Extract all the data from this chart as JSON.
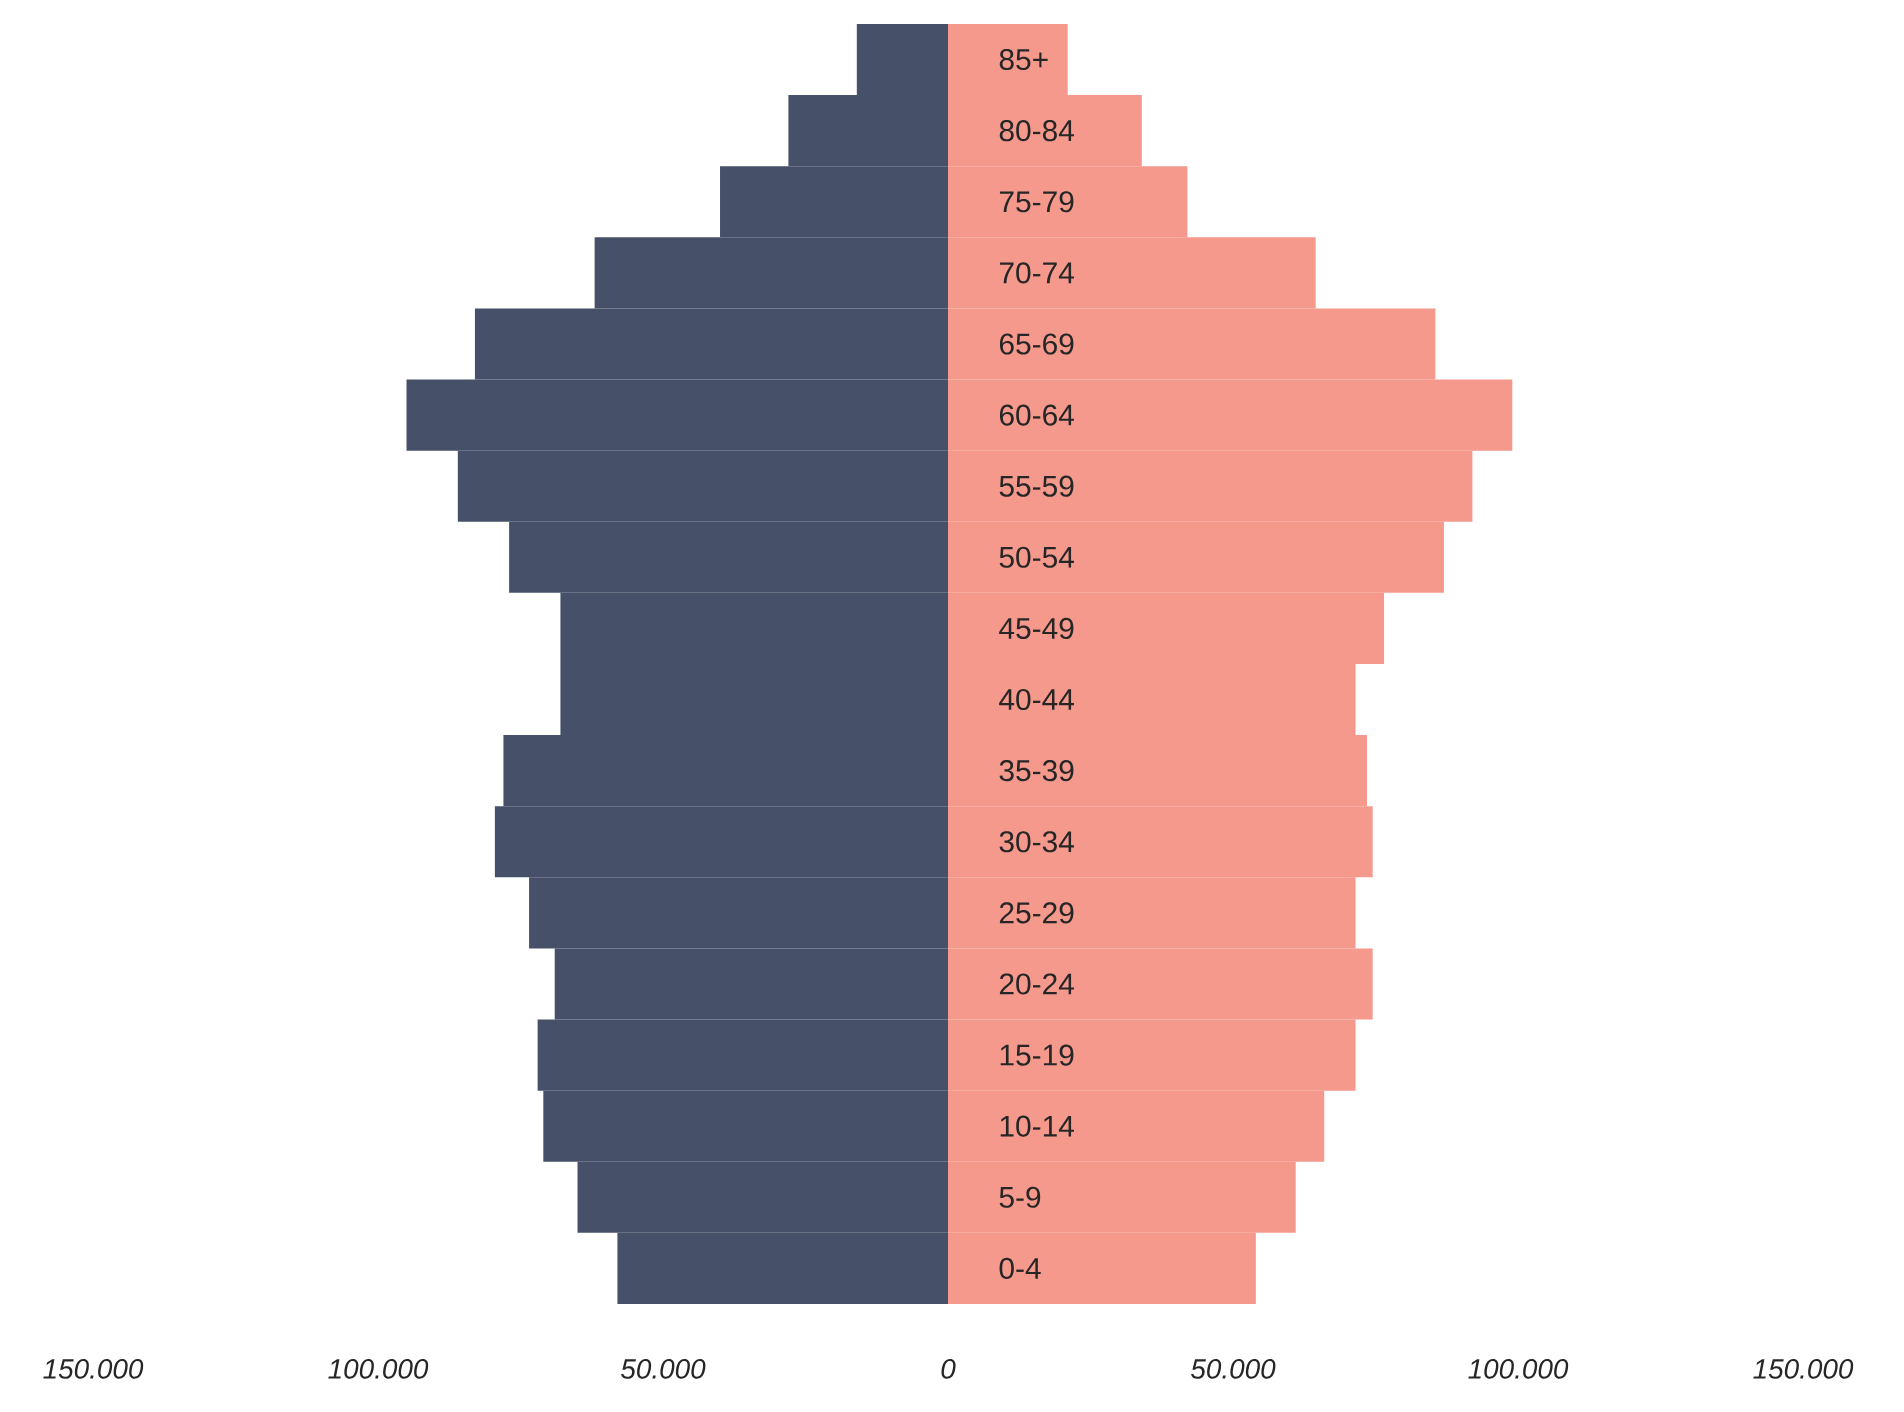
{
  "chart_data": {
    "type": "bar",
    "orientation": "horizontal",
    "categories": [
      "85+",
      "80-84",
      "75-79",
      "70-74",
      "65-69",
      "60-64",
      "55-59",
      "50-54",
      "45-49",
      "40-44",
      "35-39",
      "30-34",
      "25-29",
      "20-24",
      "15-19",
      "10-14",
      "5-9",
      "0-4"
    ],
    "series": [
      {
        "color": "#475069",
        "values": [
          -16000,
          -28000,
          -40000,
          -62000,
          -83000,
          -95000,
          -86000,
          -77000,
          -68000,
          -68000,
          -78000,
          -79500,
          -73500,
          -69000,
          -72000,
          -71000,
          -65000,
          -58000
        ]
      },
      {
        "color": "#f4998c",
        "values": [
          21000,
          34000,
          42000,
          64500,
          85500,
          99000,
          92000,
          87000,
          76500,
          71500,
          73500,
          74500,
          71500,
          74500,
          71500,
          66000,
          61000,
          54000
        ]
      }
    ],
    "stacked": true,
    "xlim": [
      -150000,
      150000
    ],
    "xticks": [
      {
        "value": -150000,
        "label": "150.000"
      },
      {
        "value": -100000,
        "label": "100.000"
      },
      {
        "value": -50000,
        "label": "50.000"
      },
      0,
      {
        "value": 50000,
        "label": "50.000"
      },
      {
        "value": 100000,
        "label": "100.000"
      },
      {
        "value": 150000,
        "label": "150.000"
      }
    ]
  }
}
